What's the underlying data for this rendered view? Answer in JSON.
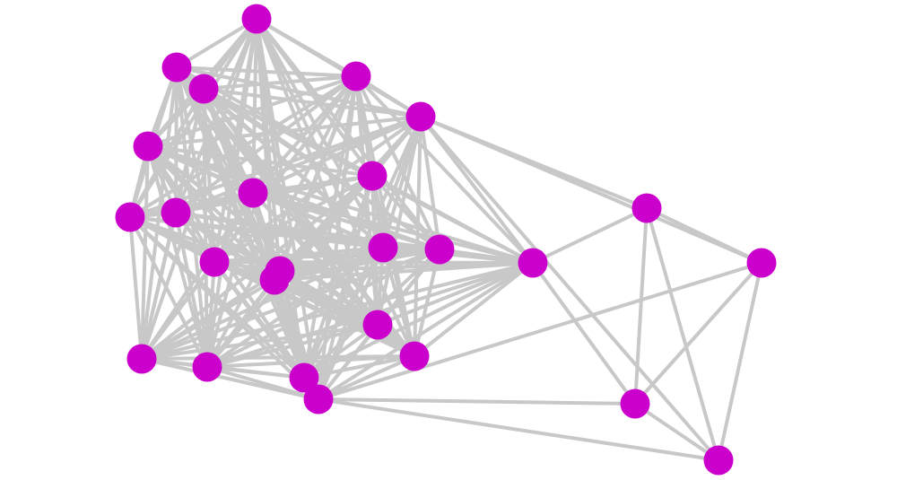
{
  "graph": {
    "node_color": "#cc00cc",
    "edge_color": "#c8c8c8",
    "background": "#ffffff",
    "nodes": [
      1,
      2,
      3,
      4,
      5,
      6,
      7,
      8,
      9,
      10,
      11,
      12,
      13,
      14,
      15,
      16,
      17,
      18,
      19,
      20,
      21,
      22,
      23,
      24,
      25,
      26
    ],
    "adjacency": {
      "1": [
        2,
        3,
        4,
        5,
        6,
        7,
        8,
        9,
        10,
        11,
        12,
        13,
        14,
        15,
        19,
        20,
        21,
        22,
        23,
        24
      ],
      "2": [
        3,
        4,
        5,
        6,
        7,
        8,
        9,
        10,
        11,
        12,
        13,
        14,
        15,
        19,
        20,
        21,
        22,
        23,
        24
      ],
      "3": [
        4,
        5,
        6,
        7,
        8,
        9,
        10,
        11,
        12,
        13,
        14,
        15,
        16,
        19,
        20,
        21,
        22,
        23,
        24
      ],
      "4": [
        5,
        6,
        7,
        8,
        9,
        10,
        11,
        12,
        13,
        14,
        15,
        16,
        19,
        20,
        21,
        22,
        23,
        24
      ],
      "5": [
        6,
        7,
        8,
        9,
        10,
        11,
        12,
        13,
        14,
        15,
        16,
        17,
        18,
        19,
        21,
        22,
        23,
        24,
        26
      ],
      "6": [
        7,
        8,
        9,
        10,
        11,
        12,
        13,
        14,
        15,
        16,
        19,
        20,
        21,
        22,
        23,
        24
      ],
      "7": [
        8,
        9,
        10,
        11,
        12,
        13,
        14,
        15,
        16,
        19,
        20,
        21,
        22,
        23,
        24
      ],
      "8": [
        9,
        10,
        11,
        12,
        13,
        14,
        15,
        16,
        19,
        20,
        21,
        22,
        23,
        24
      ],
      "9": [
        10,
        11,
        12,
        13,
        14,
        15,
        16,
        19,
        20,
        21,
        22,
        23,
        24
      ],
      "10": [
        11,
        12,
        13,
        14,
        15,
        16,
        19,
        20,
        21,
        22,
        23,
        24
      ],
      "11": [
        12,
        13,
        14,
        15,
        16,
        19,
        20,
        21,
        22,
        23,
        24
      ],
      "12": [
        13,
        14,
        15,
        16,
        19,
        20,
        21,
        22,
        23,
        24
      ],
      "13": [
        14,
        15,
        16,
        19,
        20,
        21,
        22,
        23,
        24
      ],
      "14": [
        15,
        16,
        19,
        20,
        21,
        22,
        23,
        24
      ],
      "15": [
        16,
        19,
        20,
        21,
        22,
        23,
        24
      ],
      "16": [
        17,
        19,
        20,
        21,
        22,
        23,
        24,
        25
      ],
      "17": [
        18,
        25,
        26
      ],
      "18": [
        24,
        25,
        26
      ],
      "19": [
        20,
        21,
        22,
        23,
        24
      ],
      "20": [
        21,
        22,
        23,
        24
      ],
      "21": [
        22,
        23,
        24
      ],
      "22": [
        23,
        24
      ],
      "23": [
        24
      ],
      "24": [
        25,
        26
      ],
      "25": [
        26
      ]
    }
  }
}
